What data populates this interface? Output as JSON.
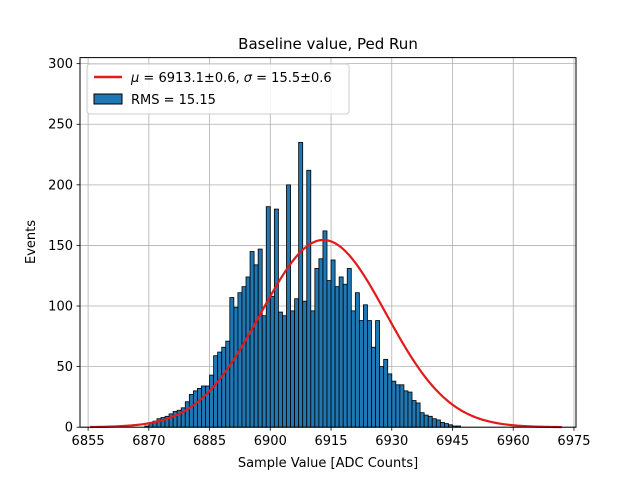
{
  "chart_data": {
    "type": "bar",
    "title": "Baseline value, Ped Run",
    "xlabel": "Sample Value [ADC Counts]",
    "ylabel": "Events",
    "xlim": [
      6853,
      6975.5
    ],
    "ylim": [
      0,
      305
    ],
    "xticks": [
      6855,
      6870,
      6885,
      6900,
      6915,
      6930,
      6945,
      6960,
      6975
    ],
    "yticks": [
      0,
      50,
      100,
      150,
      200,
      250,
      300
    ],
    "grid": true,
    "legend_position": "top-left",
    "bin_width": 1,
    "bins_start": 6869,
    "counts": [
      1,
      3,
      5,
      7,
      8,
      9,
      11,
      13,
      14,
      16,
      21,
      27,
      30,
      32,
      34,
      34,
      43,
      59,
      62,
      66,
      71,
      107,
      99,
      111,
      116,
      124,
      145,
      134,
      147,
      92,
      182,
      108,
      180,
      95,
      92,
      200,
      96,
      106,
      235,
      104,
      212,
      96,
      131,
      139,
      162,
      121,
      138,
      116,
      124,
      118,
      131,
      96,
      111,
      88,
      101,
      88,
      66,
      88,
      50,
      56,
      44,
      38,
      35,
      35,
      30,
      29,
      22,
      20,
      12,
      10,
      9,
      7,
      6,
      4,
      3,
      2,
      1,
      1
    ],
    "fit": {
      "type": "gaussian",
      "mu": 6913.1,
      "sigma": 15.5,
      "peak": 154.5,
      "x_range": [
        6855.5,
        6972
      ]
    },
    "colors": {
      "bar": "#1f77b4",
      "fit": "#e31a1c"
    },
    "legend": {
      "fit_label_mu": "μ",
      "fit_label_rest": " = 6913.1±0.6, ",
      "fit_label_sigma": "σ",
      "fit_label_end": " = 15.5±0.6",
      "hist_label": "RMS = 15.15"
    }
  }
}
